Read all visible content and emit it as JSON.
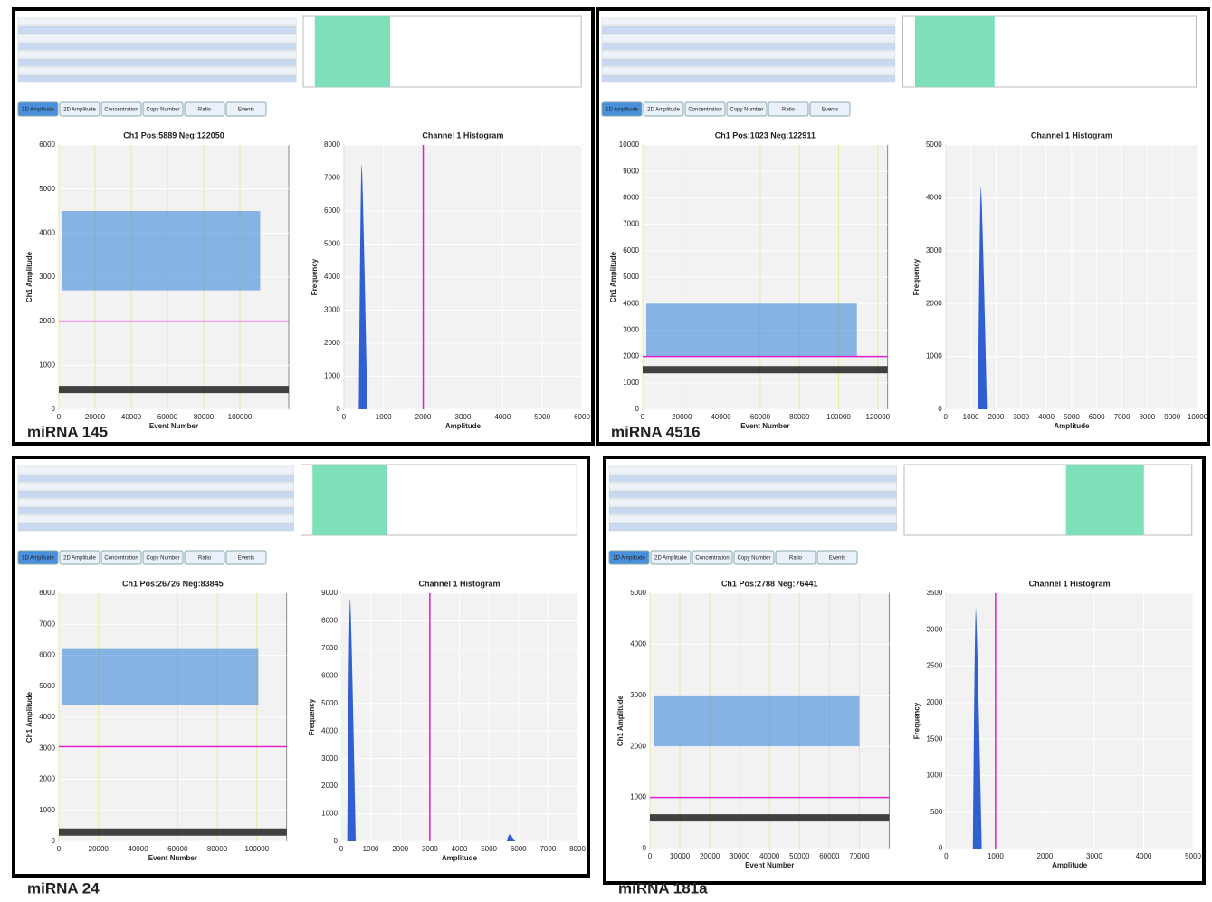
{
  "toolbar": [
    "1D Amplitude",
    "2D Amplitude",
    "Concentration",
    "Copy Number",
    "Ratio",
    "Events"
  ],
  "panels": [
    {
      "label": "miRNA 145",
      "scatter": {
        "title": "Ch1 Pos:5889 Neg:122050",
        "x_label": "Event Number",
        "y_label": "Ch1 Amplitude",
        "xlim": [
          0,
          127000
        ],
        "xticks": [
          0,
          20000,
          40000,
          60000,
          80000,
          100000
        ],
        "ylim": [
          0,
          6000
        ],
        "yticks": [
          0,
          1000,
          2000,
          3000,
          4000,
          5000,
          6000
        ],
        "threshold": 2000,
        "positive_band": [
          2700,
          4500
        ],
        "negative_level": 450
      },
      "histogram": {
        "title": "Channel 1 Histogram",
        "x_label": "Amplitude",
        "y_label": "Frequency",
        "xlim": [
          0,
          6000
        ],
        "xticks": [
          0,
          1000,
          2000,
          3000,
          4000,
          5000,
          6000
        ],
        "ylim": [
          0,
          8000
        ],
        "yticks": [
          0,
          1000,
          2000,
          3000,
          4000,
          5000,
          6000,
          7000,
          8000
        ],
        "threshold": 2000,
        "peaks": [
          {
            "amplitude": 450,
            "frequency": 7400
          }
        ]
      }
    },
    {
      "label": "miRNA 4516",
      "scatter": {
        "title": "Ch1 Pos:1023 Neg:122911",
        "x_label": "Event Number",
        "y_label": "Ch1 Amplitude",
        "xlim": [
          0,
          125000
        ],
        "xticks": [
          0,
          20000,
          40000,
          60000,
          80000,
          100000,
          120000
        ],
        "ylim": [
          0,
          10000
        ],
        "yticks": [
          0,
          1000,
          2000,
          3000,
          4000,
          5000,
          6000,
          7000,
          8000,
          9000,
          10000
        ],
        "threshold": 2000,
        "positive_band": [
          2000,
          4000
        ],
        "negative_level": 1500
      },
      "histogram": {
        "title": "Channel 1 Histogram",
        "x_label": "Amplitude",
        "y_label": "Frequency",
        "xlim": [
          0,
          10000
        ],
        "xticks": [
          0,
          1000,
          2000,
          3000,
          4000,
          5000,
          6000,
          7000,
          8000,
          9000,
          10000
        ],
        "ylim": [
          0,
          5000
        ],
        "yticks": [
          0,
          1000,
          2000,
          3000,
          4000,
          5000
        ],
        "peaks": [
          {
            "amplitude": 1400,
            "frequency": 4200
          }
        ]
      }
    },
    {
      "label": "miRNA 24",
      "scatter": {
        "title": "Ch1 Pos:26726 Neg:83845",
        "x_label": "Event Number",
        "y_label": "Ch1 Amplitude",
        "xlim": [
          0,
          115000
        ],
        "xticks": [
          0,
          20000,
          40000,
          60000,
          80000,
          100000
        ],
        "ylim": [
          0,
          8000
        ],
        "yticks": [
          0,
          1000,
          2000,
          3000,
          4000,
          5000,
          6000,
          7000,
          8000
        ],
        "threshold": 3050,
        "positive_band": [
          4400,
          6200
        ],
        "negative_level": 300
      },
      "histogram": {
        "title": "Channel 1 Histogram",
        "x_label": "Amplitude",
        "y_label": "Frequency",
        "xlim": [
          0,
          8000
        ],
        "xticks": [
          0,
          1000,
          2000,
          3000,
          4000,
          5000,
          6000,
          7000,
          8000
        ],
        "ylim": [
          0,
          9000
        ],
        "yticks": [
          0,
          1000,
          2000,
          3000,
          4000,
          5000,
          6000,
          7000,
          8000,
          9000
        ],
        "threshold": 3000,
        "peaks": [
          {
            "amplitude": 300,
            "frequency": 8800
          },
          {
            "amplitude": 5700,
            "frequency": 250
          }
        ]
      }
    },
    {
      "label": "miRNA 181a",
      "scatter": {
        "title": "Ch1 Pos:2788 Neg:76441",
        "x_label": "Event Number",
        "y_label": "Ch1 Amplitude",
        "xlim": [
          0,
          80000
        ],
        "xticks": [
          0,
          10000,
          20000,
          30000,
          40000,
          50000,
          60000,
          70000
        ],
        "ylim": [
          0,
          5000
        ],
        "yticks": [
          0,
          1000,
          2000,
          3000,
          4000,
          5000
        ],
        "threshold": 1000,
        "positive_band": [
          2000,
          3000
        ],
        "negative_level": 600
      },
      "histogram": {
        "title": "Channel 1 Histogram",
        "x_label": "Amplitude",
        "y_label": "Frequency",
        "xlim": [
          0,
          5000
        ],
        "xticks": [
          0,
          1000,
          2000,
          3000,
          4000,
          5000
        ],
        "ylim": [
          0,
          3500
        ],
        "yticks": [
          0,
          500,
          1000,
          1500,
          2000,
          2500,
          3000,
          3500
        ],
        "threshold": 1000,
        "peaks": [
          {
            "amplitude": 600,
            "frequency": 3280
          }
        ]
      }
    }
  ]
}
